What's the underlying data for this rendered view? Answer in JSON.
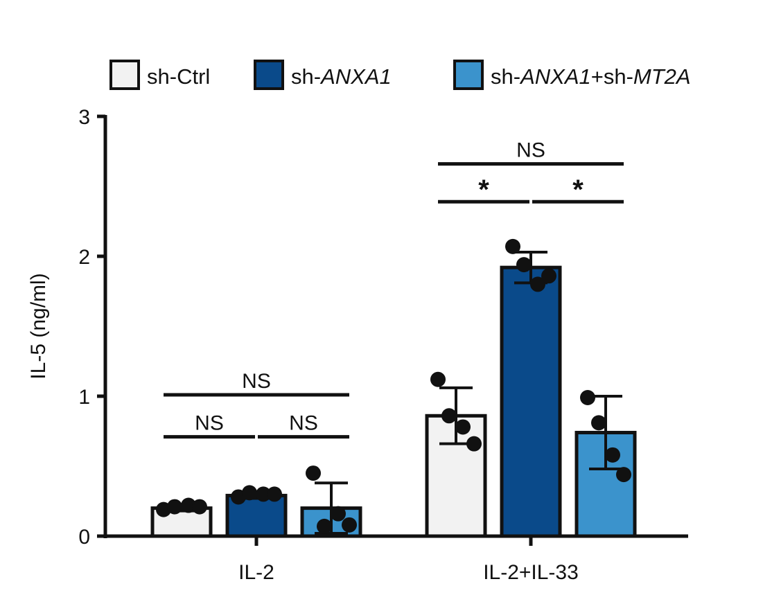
{
  "chart_data": {
    "type": "bar",
    "ylabel": "IL-5 (ng/ml)",
    "ylim": [
      0,
      3
    ],
    "yticks": [
      0,
      1,
      2,
      3
    ],
    "categories": [
      "IL-2",
      "IL-2+IL-33"
    ],
    "series": [
      {
        "name": "sh-Ctrl",
        "legend_parts": [
          {
            "text": "sh-Ctrl",
            "italic": false
          }
        ],
        "color": "#f2f2f2",
        "values": [
          0.2,
          0.86
        ],
        "sd": [
          0.02,
          0.2
        ],
        "points": [
          [
            0.19,
            0.21,
            0.22,
            0.21
          ],
          [
            1.12,
            0.86,
            0.78,
            0.66
          ]
        ]
      },
      {
        "name": "sh-ANXA1",
        "legend_parts": [
          {
            "text": "sh-",
            "italic": false
          },
          {
            "text": "ANXA1",
            "italic": true
          }
        ],
        "color": "#0a4a8a",
        "values": [
          0.29,
          1.92
        ],
        "sd": [
          0.02,
          0.11
        ],
        "points": [
          [
            0.28,
            0.31,
            0.3,
            0.3
          ],
          [
            2.07,
            1.94,
            1.8,
            1.86
          ]
        ]
      },
      {
        "name": "sh-ANXA1+sh-MT2A",
        "legend_parts": [
          {
            "text": "sh-",
            "italic": false
          },
          {
            "text": "ANXA1",
            "italic": true
          },
          {
            "text": "+sh-",
            "italic": false
          },
          {
            "text": "MT2A",
            "italic": true
          }
        ],
        "color": "#3b93cc",
        "values": [
          0.2,
          0.74
        ],
        "sd": [
          0.18,
          0.26
        ],
        "points": [
          [
            0.45,
            0.07,
            0.16,
            0.08
          ],
          [
            0.99,
            0.81,
            0.58,
            0.44
          ]
        ]
      }
    ],
    "significance": [
      {
        "category": 0,
        "from": 0,
        "to": 2,
        "label": "NS",
        "level": 1.01
      },
      {
        "category": 0,
        "from": 0,
        "to": 1,
        "label": "NS",
        "level": 0.71
      },
      {
        "category": 0,
        "from": 1,
        "to": 2,
        "label": "NS",
        "level": 0.71
      },
      {
        "category": 1,
        "from": 0,
        "to": 2,
        "label": "NS",
        "level": 2.66
      },
      {
        "category": 1,
        "from": 0,
        "to": 1,
        "label": "*",
        "level": 2.39
      },
      {
        "category": 1,
        "from": 1,
        "to": 2,
        "label": "*",
        "level": 2.39
      }
    ],
    "legend_position": "top",
    "grid": false
  }
}
